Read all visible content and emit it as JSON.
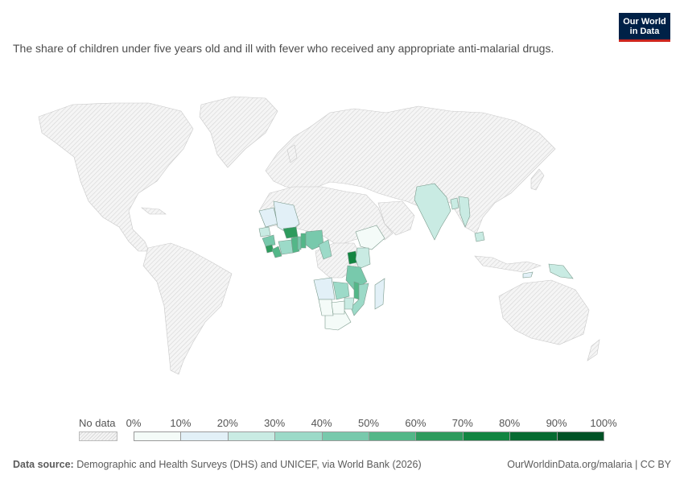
{
  "logo": {
    "line1": "Our World",
    "line2": "in Data"
  },
  "subtitle": "The share of children under five years old and ill with fever who received any appropriate anti-malarial drugs.",
  "legend": {
    "no_data_label": "No data",
    "ticks": [
      "0%",
      "10%",
      "20%",
      "30%",
      "40%",
      "50%",
      "60%",
      "70%",
      "80%",
      "90%",
      "100%"
    ],
    "bin_colors": [
      "#f4fbf8",
      "#e2f0f7",
      "#c9ebe3",
      "#9cdac8",
      "#78c9ac",
      "#53b788",
      "#2e9b5d",
      "#128541",
      "#066b31",
      "#005226"
    ]
  },
  "footer": {
    "source_label": "Data source:",
    "source_text": " Demographic and Health Surveys (DHS) and UNICEF, via World Bank (2026)",
    "url_text": "OurWorldinData.org/malaria | CC BY"
  },
  "map_data": {
    "colored_countries": [
      {
        "name": "India",
        "fill": "#c9ebe3"
      },
      {
        "name": "Bangladesh",
        "fill": "#c9ebe3"
      },
      {
        "name": "Myanmar",
        "fill": "#c9ebe3"
      },
      {
        "name": "Cambodia",
        "fill": "#c9ebe3"
      },
      {
        "name": "Timor-Leste",
        "fill": "#e2f0f7"
      },
      {
        "name": "Papua New Guinea",
        "fill": "#c9ebe3"
      },
      {
        "name": "Mauritania",
        "fill": "#e2f0f7"
      },
      {
        "name": "Mali",
        "fill": "#e2f0f7"
      },
      {
        "name": "Senegal",
        "fill": "#c9ebe3"
      },
      {
        "name": "Guinea",
        "fill": "#78c9ac"
      },
      {
        "name": "Sierra Leone",
        "fill": "#2e9b5d"
      },
      {
        "name": "Liberia",
        "fill": "#53b788"
      },
      {
        "name": "Cote d'Ivoire",
        "fill": "#9cdac8"
      },
      {
        "name": "Burkina Faso",
        "fill": "#2e9b5d"
      },
      {
        "name": "Ghana",
        "fill": "#53b788"
      },
      {
        "name": "Togo",
        "fill": "#78c9ac"
      },
      {
        "name": "Benin",
        "fill": "#53b788"
      },
      {
        "name": "Nigeria",
        "fill": "#78c9ac"
      },
      {
        "name": "Cameroon",
        "fill": "#9cdac8"
      },
      {
        "name": "Ethiopia",
        "fill": "#f4fbf8"
      },
      {
        "name": "Uganda",
        "fill": "#128541"
      },
      {
        "name": "Kenya",
        "fill": "#c9ebe3"
      },
      {
        "name": "Tanzania",
        "fill": "#78c9ac"
      },
      {
        "name": "Angola",
        "fill": "#e2f0f7"
      },
      {
        "name": "Zambia",
        "fill": "#9cdac8"
      },
      {
        "name": "Malawi",
        "fill": "#53b788"
      },
      {
        "name": "Mozambique",
        "fill": "#9cdac8"
      },
      {
        "name": "Zimbabwe",
        "fill": "#c9ebe3"
      },
      {
        "name": "Madagascar",
        "fill": "#e2f0f7"
      },
      {
        "name": "South Africa",
        "fill": "#f4fbf8"
      },
      {
        "name": "Namibia",
        "fill": "#f4fbf8"
      },
      {
        "name": "Botswana",
        "fill": "#f4fbf8"
      }
    ]
  }
}
